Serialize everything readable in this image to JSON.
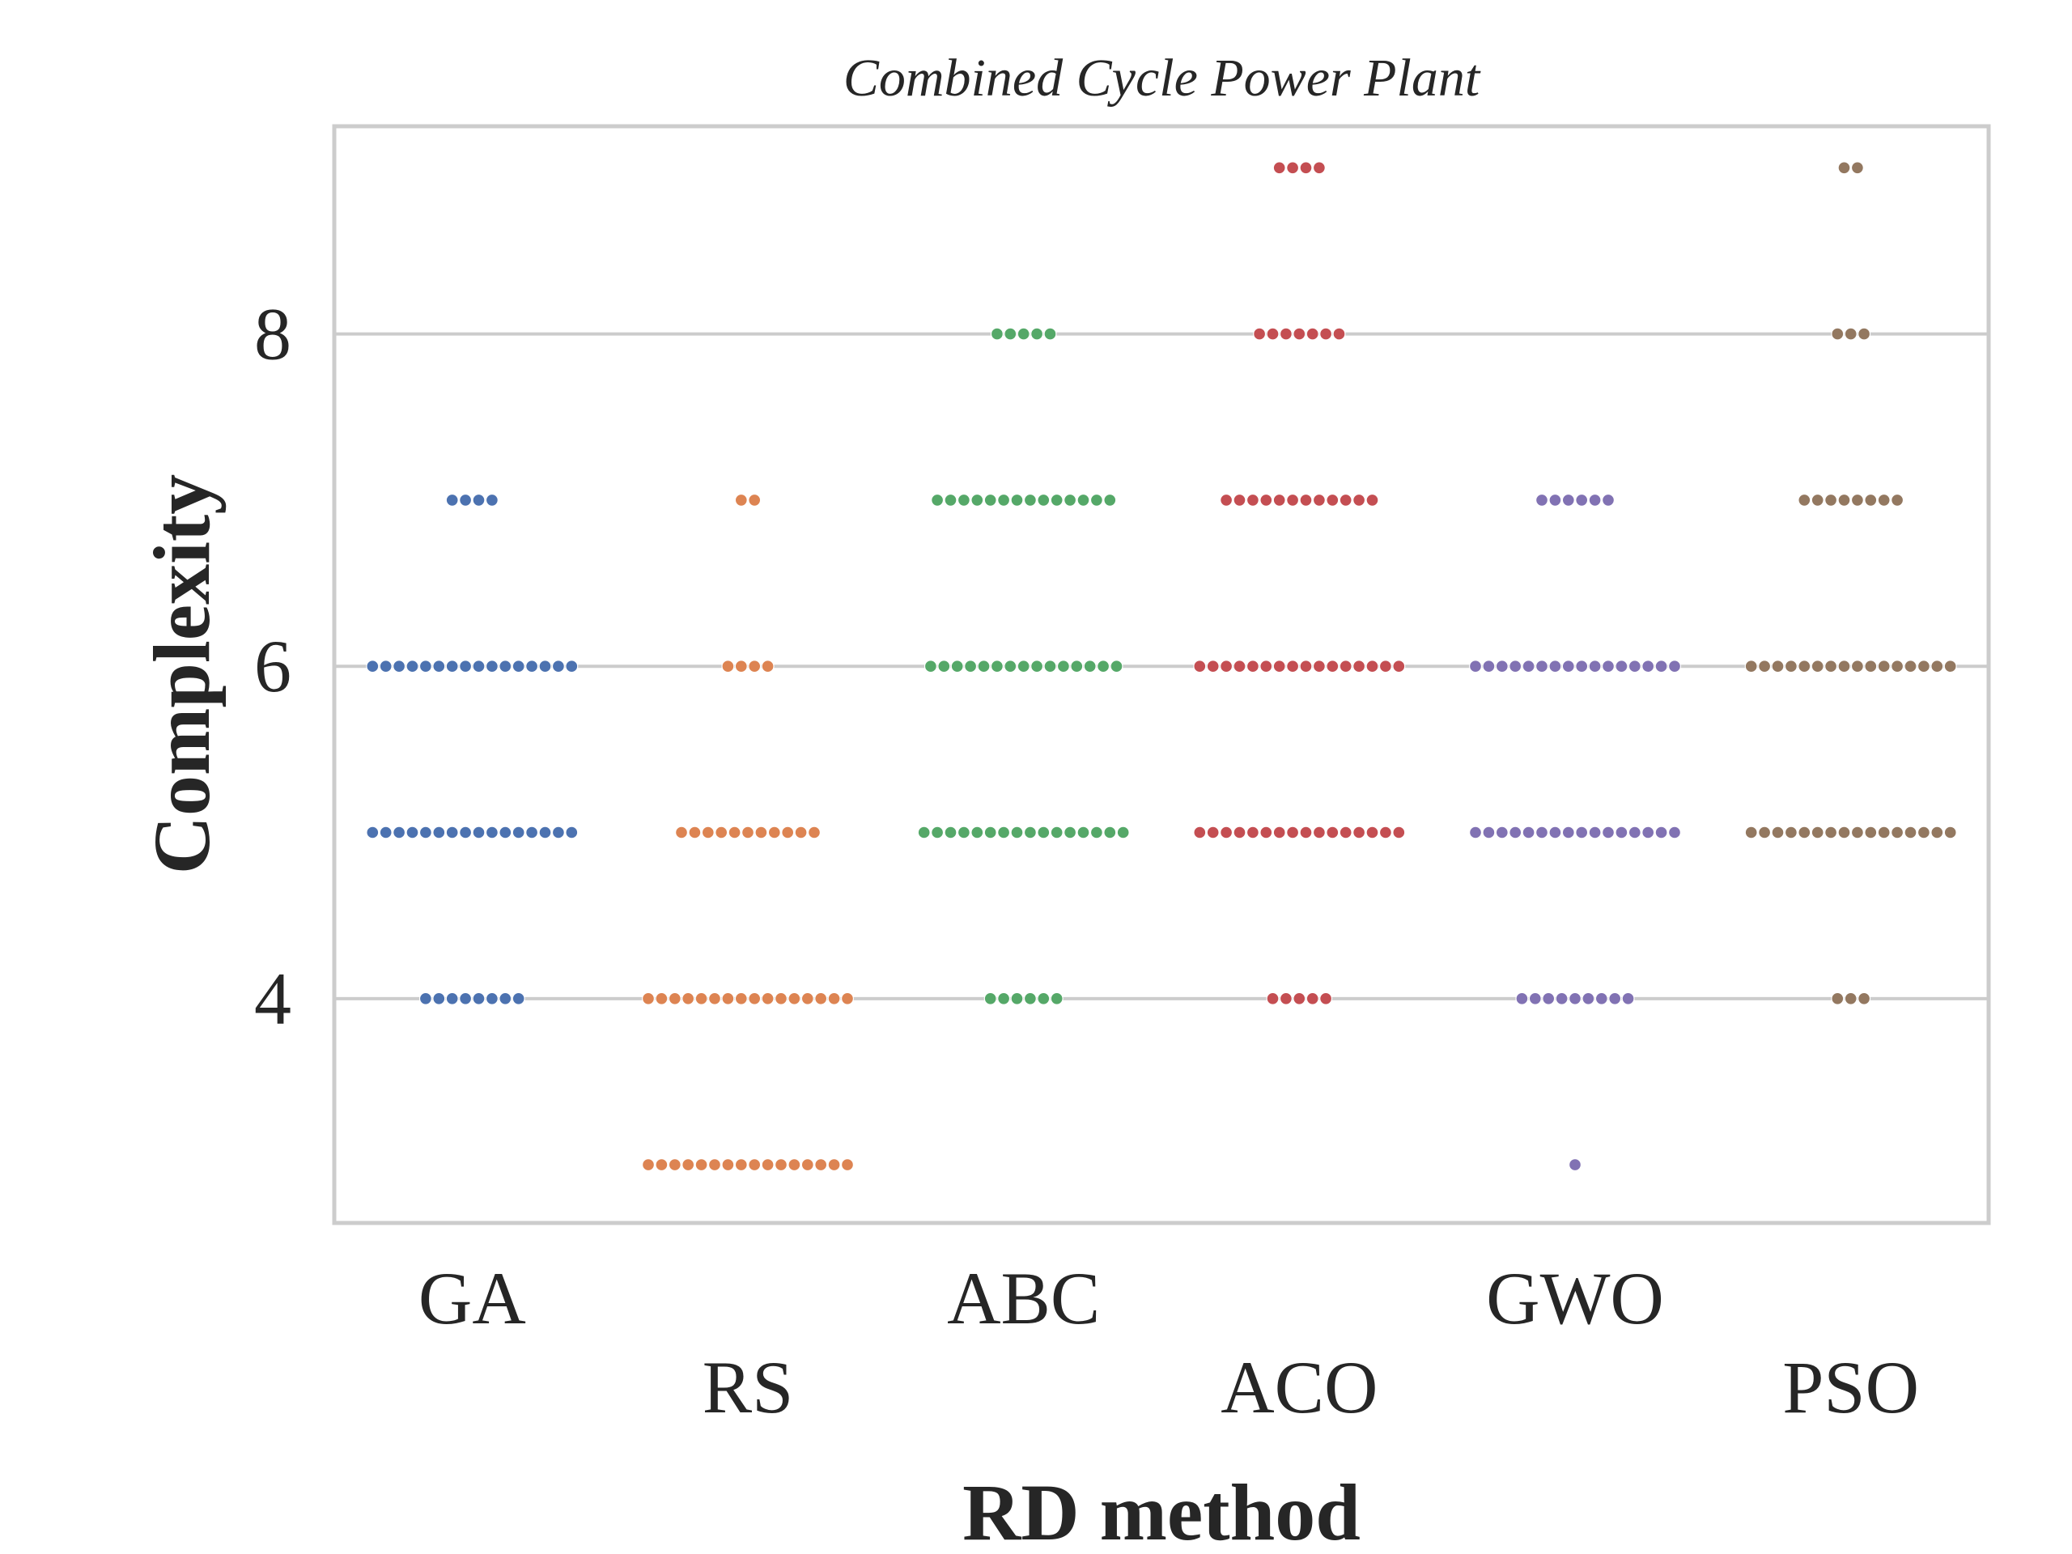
{
  "chart_data": {
    "type": "scatter",
    "subtype": "swarm",
    "title": "Combined Cycle Power Plant",
    "xlabel": "RD method",
    "ylabel": "Complexity",
    "ylim": [
      2.65,
      9.25
    ],
    "yticks": [
      4,
      6,
      8
    ],
    "grid": "horizontal",
    "legend": "none",
    "categories": [
      "GA",
      "RS",
      "ABC",
      "ACO",
      "GWO",
      "PSO"
    ],
    "colors": [
      "#4c72b0",
      "#dd8452",
      "#55a868",
      "#c44e52",
      "#8172b3",
      "#937860"
    ],
    "series": [
      {
        "category": "GA",
        "counts": [
          {
            "y": 4,
            "n": 8
          },
          {
            "y": 5,
            "n": 16
          },
          {
            "y": 6,
            "n": 16
          },
          {
            "y": 7,
            "n": 4
          }
        ]
      },
      {
        "category": "RS",
        "counts": [
          {
            "y": 3,
            "n": 16
          },
          {
            "y": 4,
            "n": 16
          },
          {
            "y": 5,
            "n": 11
          },
          {
            "y": 6,
            "n": 4
          },
          {
            "y": 7,
            "n": 2
          }
        ]
      },
      {
        "category": "ABC",
        "counts": [
          {
            "y": 4,
            "n": 6
          },
          {
            "y": 5,
            "n": 16
          },
          {
            "y": 6,
            "n": 15
          },
          {
            "y": 7,
            "n": 14
          },
          {
            "y": 8,
            "n": 5
          }
        ]
      },
      {
        "category": "ACO",
        "counts": [
          {
            "y": 4,
            "n": 5
          },
          {
            "y": 5,
            "n": 16
          },
          {
            "y": 6,
            "n": 16
          },
          {
            "y": 7,
            "n": 12
          },
          {
            "y": 8,
            "n": 7
          },
          {
            "y": 9,
            "n": 4
          }
        ]
      },
      {
        "category": "GWO",
        "counts": [
          {
            "y": 3,
            "n": 1
          },
          {
            "y": 4,
            "n": 9
          },
          {
            "y": 5,
            "n": 16
          },
          {
            "y": 6,
            "n": 16
          },
          {
            "y": 7,
            "n": 6
          }
        ]
      },
      {
        "category": "PSO",
        "counts": [
          {
            "y": 4,
            "n": 3
          },
          {
            "y": 5,
            "n": 16
          },
          {
            "y": 6,
            "n": 16
          },
          {
            "y": 7,
            "n": 8
          },
          {
            "y": 8,
            "n": 3
          },
          {
            "y": 9,
            "n": 2
          }
        ]
      }
    ]
  }
}
